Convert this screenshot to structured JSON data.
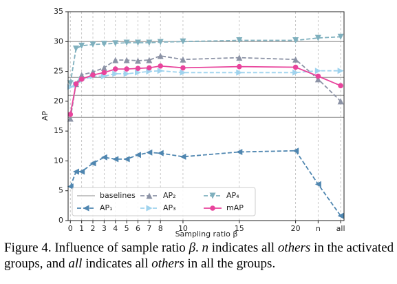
{
  "chart_data": {
    "type": "line",
    "xlabel": "Sampling ratio β",
    "ylabel": "AP",
    "x": [
      0,
      0.5,
      1,
      2,
      3,
      4,
      5,
      6,
      7,
      8,
      10,
      15,
      20,
      22,
      24
    ],
    "xlim": [
      -0.2,
      24.3
    ],
    "xticks": [
      0,
      1,
      2,
      3,
      4,
      5,
      6,
      7,
      8,
      10,
      15,
      20,
      {
        "value": 22,
        "label": "n"
      },
      {
        "value": 24,
        "label": "all"
      }
    ],
    "ylim": [
      0,
      35
    ],
    "yticks": [
      0,
      5,
      10,
      15,
      20,
      25,
      30,
      35
    ],
    "grid": true,
    "baselines": {
      "name": "baselines",
      "color": "#8c8c8c",
      "values": [
        17.3,
        21,
        24,
        30
      ]
    },
    "series": [
      {
        "name": "AP₁",
        "color": "#4f86b0",
        "marker": "triangle-left",
        "dashed": true,
        "values": [
          5.7,
          8.2,
          8.2,
          9.6,
          10.6,
          10.3,
          10.3,
          11.0,
          11.4,
          11.3,
          10.7,
          11.5,
          11.7,
          6.1,
          0.8
        ]
      },
      {
        "name": "AP₂",
        "color": "#8c93a6",
        "marker": "triangle-up",
        "dashed": true,
        "values": [
          17.1,
          22.9,
          24.4,
          24.9,
          25.6,
          26.9,
          26.9,
          26.8,
          26.9,
          27.6,
          27.0,
          27.3,
          27.0,
          23.7,
          20.0
        ]
      },
      {
        "name": "AP₃",
        "color": "#9fd3ee",
        "marker": "triangle-right",
        "dashed": true,
        "values": [
          22.4,
          22.8,
          23.5,
          24.2,
          24.2,
          24.6,
          24.6,
          24.8,
          25.0,
          25.1,
          24.8,
          24.8,
          24.8,
          25.1,
          25.1
        ]
      },
      {
        "name": "AP₄",
        "color": "#7fb0be",
        "marker": "triangle-down",
        "dashed": true,
        "values": [
          23.0,
          28.8,
          29.3,
          29.5,
          29.6,
          29.7,
          29.8,
          29.8,
          29.8,
          29.9,
          30.0,
          30.2,
          30.2,
          30.6,
          30.8
        ]
      },
      {
        "name": "mAP",
        "color": "#e8449c",
        "marker": "circle",
        "dashed": false,
        "values": [
          17.8,
          22.9,
          23.7,
          24.4,
          24.8,
          25.4,
          25.4,
          25.5,
          25.6,
          25.9,
          25.6,
          25.8,
          25.7,
          24.2,
          22.6
        ]
      }
    ]
  },
  "caption": [
    "Figure 4. Influence of sample ratio ",
    "β",
    ". ",
    "n",
    " indicates all ",
    "others",
    " in the activated groups, and ",
    "all",
    " indicates all ",
    "others",
    " in all the groups."
  ]
}
